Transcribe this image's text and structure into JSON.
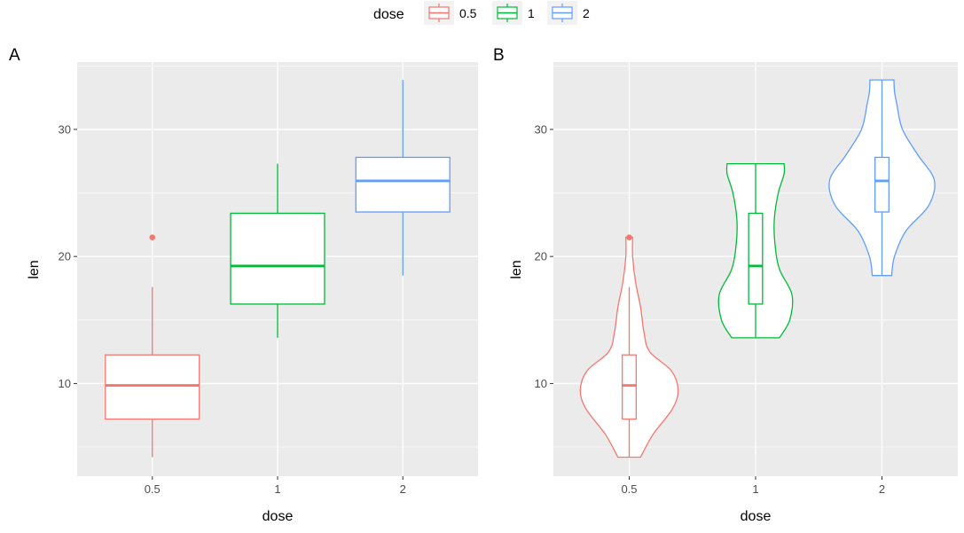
{
  "legend": {
    "title": "dose",
    "items": [
      {
        "label": "0.5",
        "color": "#F8766D"
      },
      {
        "label": "1",
        "color": "#00BA38"
      },
      {
        "label": "2",
        "color": "#619CFF"
      }
    ]
  },
  "chart_data": [
    {
      "type": "boxplot",
      "panel_label": "A",
      "xlabel": "dose",
      "ylabel": "len",
      "ylim": [
        2.7,
        35.3
      ],
      "yticks": [
        10,
        20,
        30
      ],
      "categories": [
        "0.5",
        "1",
        "2"
      ],
      "grid": true,
      "boxes": [
        {
          "category": "0.5",
          "color": "#F8766D",
          "min": 4.2,
          "q1": 7.2,
          "median": 9.85,
          "q3": 12.25,
          "max": 17.6,
          "outliers": [
            21.5
          ]
        },
        {
          "category": "1",
          "color": "#00BA38",
          "min": 13.6,
          "q1": 16.25,
          "median": 19.25,
          "q3": 23.4,
          "max": 27.3,
          "outliers": []
        },
        {
          "category": "2",
          "color": "#619CFF",
          "min": 18.5,
          "q1": 23.5,
          "median": 25.95,
          "q3": 27.8,
          "max": 33.9,
          "outliers": []
        }
      ]
    },
    {
      "type": "violin",
      "panel_label": "B",
      "xlabel": "dose",
      "ylabel": "len",
      "ylim": [
        2.7,
        35.3
      ],
      "yticks": [
        10,
        20,
        30
      ],
      "categories": [
        "0.5",
        "1",
        "2"
      ],
      "grid": true,
      "violins": [
        {
          "category": "0.5",
          "color": "#F8766D",
          "profile": [
            [
              4.2,
              0.2
            ],
            [
              6.0,
              0.42
            ],
            [
              8.0,
              0.76
            ],
            [
              9.5,
              0.86
            ],
            [
              11.0,
              0.74
            ],
            [
              12.5,
              0.36
            ],
            [
              14.0,
              0.26
            ],
            [
              16.0,
              0.2
            ],
            [
              18.0,
              0.11
            ],
            [
              20.0,
              0.06
            ],
            [
              21.5,
              0.06
            ]
          ],
          "box": {
            "min": 4.2,
            "q1": 7.2,
            "median": 9.85,
            "q3": 12.25,
            "max": 17.6,
            "outliers": [
              21.5
            ]
          }
        },
        {
          "category": "1",
          "color": "#00BA38",
          "profile": [
            [
              13.6,
              0.42
            ],
            [
              15.0,
              0.6
            ],
            [
              17.0,
              0.64
            ],
            [
              19.0,
              0.42
            ],
            [
              21.0,
              0.34
            ],
            [
              23.0,
              0.33
            ],
            [
              25.0,
              0.4
            ],
            [
              26.5,
              0.5
            ],
            [
              27.3,
              0.5
            ]
          ],
          "box": {
            "min": 13.6,
            "q1": 16.25,
            "median": 19.25,
            "q3": 23.4,
            "max": 27.3,
            "outliers": []
          }
        },
        {
          "category": "2",
          "color": "#619CFF",
          "profile": [
            [
              18.5,
              0.17
            ],
            [
              20.0,
              0.22
            ],
            [
              22.0,
              0.42
            ],
            [
              24.0,
              0.82
            ],
            [
              26.0,
              0.92
            ],
            [
              28.0,
              0.63
            ],
            [
              30.0,
              0.36
            ],
            [
              32.0,
              0.26
            ],
            [
              33.0,
              0.22
            ],
            [
              33.9,
              0.21
            ]
          ],
          "box": {
            "min": 18.5,
            "q1": 23.5,
            "median": 25.95,
            "q3": 27.8,
            "max": 33.9,
            "outliers": []
          }
        }
      ]
    }
  ]
}
